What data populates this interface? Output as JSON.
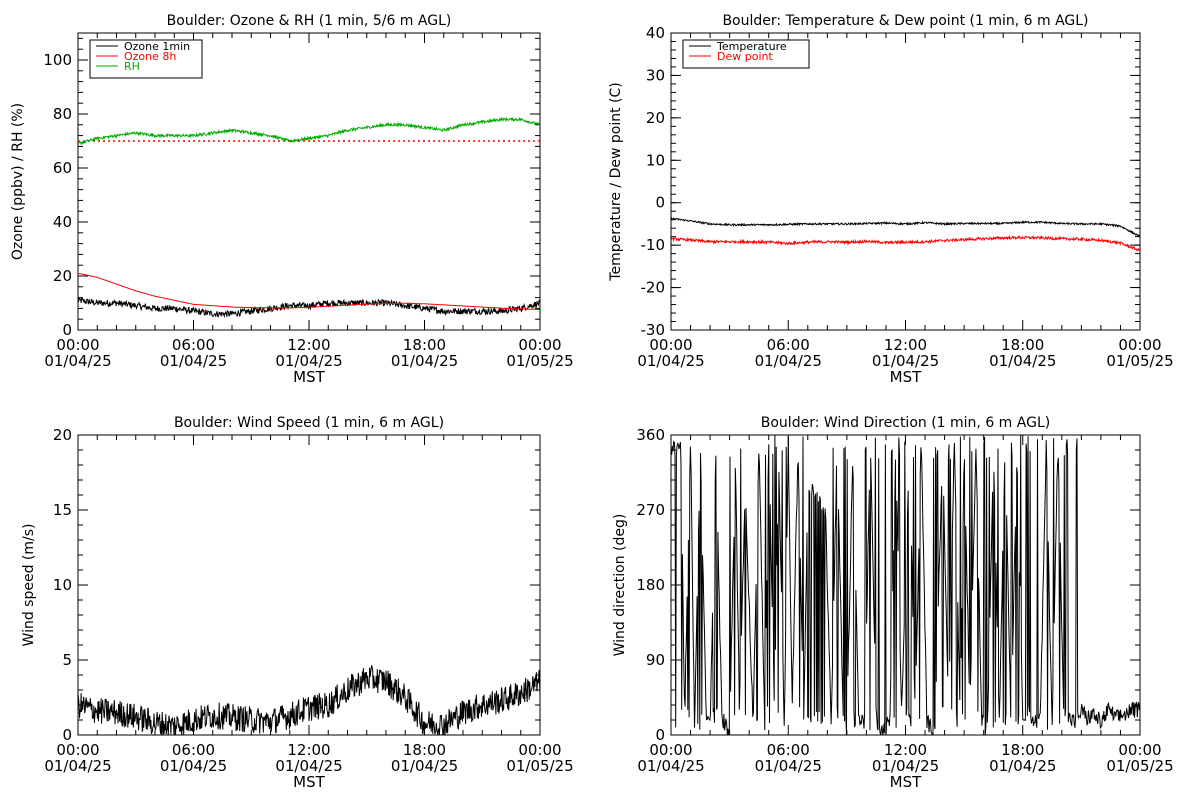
{
  "chart_data": [
    {
      "type": "line",
      "title": "Boulder: Ozone & RH (1 min, 5/6 m AGL)",
      "xlabel": "MST",
      "ylabel": "Ozone (ppbv) / RH (%)",
      "ylim": [
        0,
        110
      ],
      "yticks": [
        0,
        20,
        40,
        60,
        80,
        100
      ],
      "xlim_hours": [
        0,
        24
      ],
      "xticks_hours": [
        0,
        6,
        12,
        18,
        24
      ],
      "xtick_labels": [
        {
          "time": "00:00",
          "date": "01/04/25"
        },
        {
          "time": "06:00",
          "date": "01/04/25"
        },
        {
          "time": "12:00",
          "date": "01/04/25"
        },
        {
          "time": "18:00",
          "date": "01/04/25"
        },
        {
          "time": "00:00",
          "date": "01/05/25"
        }
      ],
      "legend_position": "top-left",
      "series": [
        {
          "name": "Ozone 1min",
          "color": "#000000",
          "noise": 1.2,
          "x": [
            0,
            1,
            2,
            3,
            4,
            5,
            6,
            7,
            8,
            9,
            10,
            11,
            12,
            13,
            14,
            15,
            16,
            17,
            18,
            19,
            20,
            21,
            22,
            23,
            24
          ],
          "y": [
            11,
            10,
            10,
            9,
            8,
            8,
            7,
            6,
            6,
            7,
            8,
            9,
            9,
            10,
            10,
            10,
            10,
            9,
            8,
            7,
            7,
            7,
            7,
            8,
            10
          ]
        },
        {
          "name": "Ozone 8h",
          "color": "#ff0000",
          "noise": 0,
          "x": [
            0,
            1,
            2,
            3,
            4,
            5,
            6,
            7,
            8,
            9,
            10,
            11,
            12,
            13,
            14,
            15,
            16,
            17,
            18,
            19,
            20,
            21,
            22,
            23,
            24
          ],
          "y": [
            21,
            19.5,
            17,
            14.5,
            12.5,
            11,
            9.5,
            9,
            8.5,
            8.3,
            8.2,
            8.2,
            8.4,
            8.8,
            9.2,
            9.6,
            9.8,
            9.9,
            9.7,
            9.3,
            8.9,
            8.5,
            8.1,
            7.8,
            7.6
          ]
        },
        {
          "name": "RH",
          "color": "#00aa00",
          "noise": 0.5,
          "x": [
            0,
            1,
            2,
            3,
            4,
            5,
            6,
            7,
            8,
            9,
            10,
            11,
            12,
            13,
            14,
            15,
            16,
            17,
            18,
            19,
            20,
            21,
            22,
            23,
            24
          ],
          "y": [
            69,
            71,
            72,
            73,
            72,
            72,
            72,
            73,
            74,
            73,
            72,
            70,
            71,
            72,
            74,
            75,
            76,
            76,
            75,
            74,
            76,
            77,
            78,
            78,
            76
          ]
        }
      ],
      "reference_line": {
        "y": 70,
        "color": "#ff0000",
        "style": "dotted"
      }
    },
    {
      "type": "line",
      "title": "Boulder: Temperature & Dew point (1 min, 6 m AGL)",
      "xlabel": "MST",
      "ylabel": "Temperature / Dew point (C)",
      "ylim": [
        -30,
        40
      ],
      "yticks": [
        -30,
        -20,
        -10,
        0,
        10,
        20,
        30,
        40
      ],
      "xlim_hours": [
        0,
        24
      ],
      "xticks_hours": [
        0,
        6,
        12,
        18,
        24
      ],
      "xtick_labels": [
        {
          "time": "00:00",
          "date": "01/04/25"
        },
        {
          "time": "06:00",
          "date": "01/04/25"
        },
        {
          "time": "12:00",
          "date": "01/04/25"
        },
        {
          "time": "18:00",
          "date": "01/04/25"
        },
        {
          "time": "00:00",
          "date": "01/05/25"
        }
      ],
      "legend_position": "top-left",
      "series": [
        {
          "name": "Temperature",
          "color": "#000000",
          "noise": 0.2,
          "x": [
            0,
            1,
            2,
            3,
            4,
            5,
            6,
            7,
            8,
            9,
            10,
            11,
            12,
            13,
            14,
            15,
            16,
            17,
            18,
            19,
            20,
            21,
            22,
            23,
            24
          ],
          "y": [
            -3.7,
            -4.3,
            -5,
            -5.2,
            -5.2,
            -5.2,
            -5.1,
            -5,
            -5,
            -5,
            -4.9,
            -4.8,
            -5,
            -4.7,
            -5,
            -4.9,
            -4.9,
            -4.9,
            -4.6,
            -4.6,
            -4.9,
            -5,
            -5,
            -5.5,
            -8
          ]
        },
        {
          "name": "Dew point",
          "color": "#ff0000",
          "noise": 0.3,
          "x": [
            0,
            1,
            2,
            3,
            4,
            5,
            6,
            7,
            8,
            9,
            10,
            11,
            12,
            13,
            14,
            15,
            16,
            17,
            18,
            19,
            20,
            21,
            22,
            23,
            24
          ],
          "y": [
            -8.5,
            -8.8,
            -9.2,
            -9.2,
            -9.2,
            -9.3,
            -9.6,
            -9.3,
            -9.2,
            -9.3,
            -9.1,
            -9.4,
            -9.3,
            -9.2,
            -8.9,
            -8.7,
            -8.5,
            -8.3,
            -8.2,
            -8.3,
            -8.5,
            -8.6,
            -8.9,
            -9.5,
            -11.3
          ]
        }
      ]
    },
    {
      "type": "line",
      "title": "Boulder: Wind Speed (1 min, 6 m AGL)",
      "xlabel": "MST",
      "ylabel": "Wind speed (m/s)",
      "ylim": [
        0,
        20
      ],
      "yticks": [
        0,
        5,
        10,
        15,
        20
      ],
      "xlim_hours": [
        0,
        24
      ],
      "xticks_hours": [
        0,
        6,
        12,
        18,
        24
      ],
      "xtick_labels": [
        {
          "time": "00:00",
          "date": "01/04/25"
        },
        {
          "time": "06:00",
          "date": "01/04/25"
        },
        {
          "time": "12:00",
          "date": "01/04/25"
        },
        {
          "time": "18:00",
          "date": "01/04/25"
        },
        {
          "time": "00:00",
          "date": "01/05/25"
        }
      ],
      "series": [
        {
          "color": "#000000",
          "noise": 0.9,
          "x": [
            0,
            1,
            2,
            3,
            4,
            5,
            6,
            7,
            8,
            9,
            10,
            11,
            12,
            13,
            14,
            15,
            16,
            17,
            18,
            19,
            20,
            21,
            22,
            23,
            24
          ],
          "y": [
            2,
            1.6,
            1.5,
            1.2,
            0.8,
            0.6,
            1,
            1.3,
            1.2,
            1,
            0.9,
            1.3,
            1.8,
            2,
            3,
            3.8,
            3.6,
            2.5,
            0.8,
            0.7,
            1.5,
            2,
            2.3,
            2.8,
            3.5
          ]
        }
      ]
    },
    {
      "type": "line",
      "title": "Boulder: Wind Direction (1 min, 6 m AGL)",
      "xlabel": "MST",
      "ylabel": "Wind direction (deg)",
      "ylim": [
        0,
        360
      ],
      "yticks": [
        0,
        90,
        180,
        270,
        360
      ],
      "xlim_hours": [
        0,
        24
      ],
      "xticks_hours": [
        0,
        6,
        12,
        18,
        24
      ],
      "xtick_labels": [
        {
          "time": "00:00",
          "date": "01/04/25"
        },
        {
          "time": "06:00",
          "date": "01/04/25"
        },
        {
          "time": "12:00",
          "date": "01/04/25"
        },
        {
          "time": "18:00",
          "date": "01/04/25"
        },
        {
          "time": "00:00",
          "date": "01/05/25"
        }
      ],
      "series": [
        {
          "color": "#000000",
          "x": [
            0,
            0.5,
            0.7,
            1,
            1.2,
            1.5,
            1.8,
            2,
            2.3,
            2.6,
            3,
            3.3,
            3.5,
            3.8,
            4.2,
            4.5,
            4.8,
            5,
            5.3,
            5.5,
            5.8,
            6,
            6.2,
            6.5,
            6.8,
            7,
            7.3,
            7.6,
            7.9,
            8.2,
            8.5,
            8.8,
            9,
            9.3,
            9.6,
            9.9,
            10.2,
            10.5,
            10.8,
            11.2,
            11.5,
            11.8,
            12.2,
            12.5,
            12.8,
            13.1,
            13.5,
            13.9,
            14.2,
            14.5,
            14.8,
            15,
            15.3,
            15.6,
            15.9,
            16.2,
            16.5,
            16.8,
            17.1,
            17.4,
            17.7,
            18,
            18.3,
            18.6,
            18.9,
            19.2,
            19.5,
            19.8,
            20.1,
            20.4,
            20.7,
            21,
            21.3,
            21.6,
            22,
            22.4,
            22.8,
            23.2,
            23.6,
            24
          ],
          "y": [
            340,
            350,
            20,
            355,
            10,
            340,
            25,
            10,
            345,
            20,
            5,
            330,
            30,
            300,
            15,
            345,
            10,
            355,
            20,
            340,
            5,
            350,
            30,
            345,
            15,
            300,
            290,
            280,
            270,
            10,
            350,
            30,
            5,
            340,
            25,
            10,
            355,
            20,
            5,
            15,
            345,
            25,
            340,
            20,
            355,
            15,
            5,
            345,
            20,
            355,
            10,
            340,
            25,
            350,
            15,
            5,
            345,
            20,
            355,
            10,
            340,
            25,
            30,
            15,
            20,
            345,
            10,
            355,
            25,
            20,
            15,
            30,
            20,
            25,
            15,
            30,
            20,
            25,
            30,
            30
          ]
        }
      ]
    }
  ]
}
